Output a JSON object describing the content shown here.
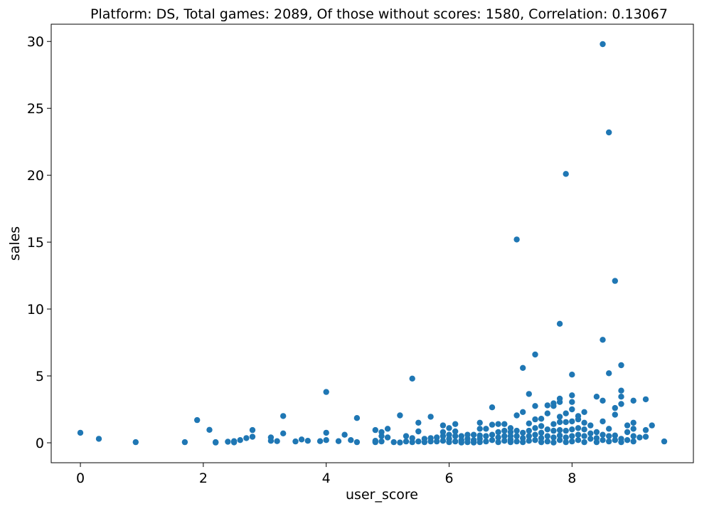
{
  "chart_data": {
    "type": "scatter",
    "title": "Platform: DS, Total games: 2089, Of those without scores: 1580, Correlation: 0.13067",
    "xlabel": "user_score",
    "ylabel": "sales",
    "xlim": [
      -0.475,
      9.975
    ],
    "ylim": [
      -1.49,
      31.29
    ],
    "xticks": [
      0,
      2,
      4,
      6,
      8
    ],
    "yticks": [
      0,
      5,
      10,
      15,
      20,
      25,
      30
    ],
    "grid": false,
    "marker_color": "#1f77b4",
    "points": [
      [
        0.0,
        0.75
      ],
      [
        0.3,
        0.3
      ],
      [
        0.9,
        0.05
      ],
      [
        1.7,
        0.05
      ],
      [
        1.9,
        1.7
      ],
      [
        2.1,
        0.97
      ],
      [
        2.2,
        0.05
      ],
      [
        2.2,
        0.02
      ],
      [
        2.4,
        0.08
      ],
      [
        2.5,
        0.12
      ],
      [
        2.5,
        0.03
      ],
      [
        2.6,
        0.2
      ],
      [
        2.7,
        0.35
      ],
      [
        2.8,
        0.45
      ],
      [
        2.8,
        0.95
      ],
      [
        3.1,
        0.4
      ],
      [
        3.1,
        0.15
      ],
      [
        3.2,
        0.12
      ],
      [
        3.3,
        0.7
      ],
      [
        3.3,
        2.0
      ],
      [
        3.5,
        0.1
      ],
      [
        3.6,
        0.25
      ],
      [
        3.7,
        0.15
      ],
      [
        3.9,
        0.12
      ],
      [
        4.0,
        0.2
      ],
      [
        4.0,
        0.75
      ],
      [
        4.0,
        3.8
      ],
      [
        4.2,
        0.12
      ],
      [
        4.3,
        0.6
      ],
      [
        4.4,
        0.2
      ],
      [
        4.5,
        0.05
      ],
      [
        4.5,
        1.85
      ],
      [
        4.8,
        0.95
      ],
      [
        4.8,
        0.15
      ],
      [
        4.8,
        0.05
      ],
      [
        4.9,
        0.8
      ],
      [
        4.9,
        0.5
      ],
      [
        4.9,
        0.1
      ],
      [
        5.0,
        1.05
      ],
      [
        5.0,
        0.4
      ],
      [
        5.1,
        0.05
      ],
      [
        5.2,
        2.05
      ],
      [
        5.2,
        0.02
      ],
      [
        5.3,
        0.5
      ],
      [
        5.3,
        0.1
      ],
      [
        5.4,
        4.8
      ],
      [
        5.4,
        0.35
      ],
      [
        5.4,
        0.05
      ],
      [
        5.5,
        1.5
      ],
      [
        5.5,
        0.85
      ],
      [
        5.5,
        0.1
      ],
      [
        5.6,
        0.3
      ],
      [
        5.6,
        0.05
      ],
      [
        5.7,
        1.95
      ],
      [
        5.7,
        0.35
      ],
      [
        5.7,
        0.1
      ],
      [
        5.8,
        0.4
      ],
      [
        5.8,
        0.1
      ],
      [
        5.9,
        1.3
      ],
      [
        5.9,
        0.8
      ],
      [
        5.9,
        0.5
      ],
      [
        5.9,
        0.15
      ],
      [
        6.0,
        1.1
      ],
      [
        6.0,
        0.6
      ],
      [
        6.0,
        0.3
      ],
      [
        6.0,
        0.05
      ],
      [
        6.1,
        1.4
      ],
      [
        6.1,
        0.85
      ],
      [
        6.1,
        0.5
      ],
      [
        6.1,
        0.1
      ],
      [
        6.2,
        0.5
      ],
      [
        6.2,
        0.2
      ],
      [
        6.2,
        0.02
      ],
      [
        6.3,
        0.6
      ],
      [
        6.3,
        0.3
      ],
      [
        6.3,
        0.05
      ],
      [
        6.4,
        0.6
      ],
      [
        6.4,
        0.2
      ],
      [
        6.4,
        0.02
      ],
      [
        6.5,
        1.5
      ],
      [
        6.5,
        1.05
      ],
      [
        6.5,
        0.55
      ],
      [
        6.5,
        0.3
      ],
      [
        6.5,
        0.05
      ],
      [
        6.6,
        1.05
      ],
      [
        6.6,
        0.5
      ],
      [
        6.6,
        0.1
      ],
      [
        6.7,
        2.65
      ],
      [
        6.7,
        1.35
      ],
      [
        6.7,
        0.6
      ],
      [
        6.7,
        0.2
      ],
      [
        6.8,
        1.4
      ],
      [
        6.8,
        0.8
      ],
      [
        6.8,
        0.4
      ],
      [
        6.8,
        0.05
      ],
      [
        6.9,
        1.4
      ],
      [
        6.9,
        0.9
      ],
      [
        6.9,
        0.5
      ],
      [
        6.9,
        0.15
      ],
      [
        7.0,
        1.1
      ],
      [
        7.0,
        0.8
      ],
      [
        7.0,
        0.5
      ],
      [
        7.0,
        0.25
      ],
      [
        7.0,
        0.05
      ],
      [
        7.1,
        15.2
      ],
      [
        7.1,
        2.05
      ],
      [
        7.1,
        0.9
      ],
      [
        7.1,
        0.5
      ],
      [
        7.1,
        0.1
      ],
      [
        7.2,
        5.6
      ],
      [
        7.2,
        2.3
      ],
      [
        7.2,
        0.75
      ],
      [
        7.2,
        0.35
      ],
      [
        7.2,
        0.05
      ],
      [
        7.3,
        3.65
      ],
      [
        7.3,
        1.45
      ],
      [
        7.3,
        0.9
      ],
      [
        7.3,
        0.5
      ],
      [
        7.3,
        0.15
      ],
      [
        7.4,
        6.6
      ],
      [
        7.4,
        2.75
      ],
      [
        7.4,
        1.75
      ],
      [
        7.4,
        1.1
      ],
      [
        7.4,
        0.6
      ],
      [
        7.4,
        0.2
      ],
      [
        7.5,
        1.8
      ],
      [
        7.5,
        1.25
      ],
      [
        7.5,
        0.75
      ],
      [
        7.5,
        0.35
      ],
      [
        7.5,
        0.05
      ],
      [
        7.6,
        2.8
      ],
      [
        7.6,
        2.2
      ],
      [
        7.6,
        1.0
      ],
      [
        7.6,
        0.5
      ],
      [
        7.6,
        0.1
      ],
      [
        7.7,
        2.95
      ],
      [
        7.7,
        2.75
      ],
      [
        7.7,
        1.4
      ],
      [
        7.7,
        0.9
      ],
      [
        7.7,
        0.4
      ],
      [
        7.7,
        0.02
      ],
      [
        7.8,
        8.9
      ],
      [
        7.8,
        3.3
      ],
      [
        7.8,
        3.05
      ],
      [
        7.8,
        1.95
      ],
      [
        7.8,
        1.55
      ],
      [
        7.8,
        0.95
      ],
      [
        7.8,
        0.55
      ],
      [
        7.8,
        0.2
      ],
      [
        7.9,
        20.1
      ],
      [
        7.9,
        2.2
      ],
      [
        7.9,
        1.55
      ],
      [
        7.9,
        0.9
      ],
      [
        7.9,
        0.4
      ],
      [
        7.9,
        0.05
      ],
      [
        8.0,
        5.1
      ],
      [
        8.0,
        3.55
      ],
      [
        8.0,
        3.05
      ],
      [
        8.0,
        2.5
      ],
      [
        8.0,
        1.6
      ],
      [
        8.0,
        1.0
      ],
      [
        8.0,
        0.5
      ],
      [
        8.0,
        0.1
      ],
      [
        8.1,
        2.0
      ],
      [
        8.1,
        1.75
      ],
      [
        8.1,
        1.1
      ],
      [
        8.1,
        0.6
      ],
      [
        8.1,
        0.2
      ],
      [
        8.2,
        2.3
      ],
      [
        8.2,
        1.5
      ],
      [
        8.2,
        1.0
      ],
      [
        8.2,
        0.5
      ],
      [
        8.2,
        0.05
      ],
      [
        8.3,
        1.3
      ],
      [
        8.3,
        0.7
      ],
      [
        8.3,
        0.3
      ],
      [
        8.4,
        3.45
      ],
      [
        8.4,
        0.8
      ],
      [
        8.4,
        0.35
      ],
      [
        8.4,
        0.05
      ],
      [
        8.5,
        29.8
      ],
      [
        8.5,
        7.7
      ],
      [
        8.5,
        3.15
      ],
      [
        8.5,
        1.6
      ],
      [
        8.5,
        0.6
      ],
      [
        8.5,
        0.2
      ],
      [
        8.6,
        23.2
      ],
      [
        8.6,
        5.2
      ],
      [
        8.6,
        1.05
      ],
      [
        8.6,
        0.5
      ],
      [
        8.6,
        0.1
      ],
      [
        8.7,
        12.1
      ],
      [
        8.7,
        2.6
      ],
      [
        8.7,
        2.1
      ],
      [
        8.7,
        0.55
      ],
      [
        8.7,
        0.2
      ],
      [
        8.8,
        5.8
      ],
      [
        8.8,
        3.9
      ],
      [
        8.8,
        3.45
      ],
      [
        8.8,
        2.9
      ],
      [
        8.8,
        0.3
      ],
      [
        8.8,
        0.05
      ],
      [
        8.9,
        1.3
      ],
      [
        8.9,
        0.8
      ],
      [
        8.9,
        0.2
      ],
      [
        9.0,
        3.15
      ],
      [
        9.0,
        1.5
      ],
      [
        9.0,
        1.05
      ],
      [
        9.0,
        0.5
      ],
      [
        9.0,
        0.1
      ],
      [
        9.1,
        0.4
      ],
      [
        9.2,
        3.25
      ],
      [
        9.2,
        0.95
      ],
      [
        9.2,
        0.45
      ],
      [
        9.3,
        1.3
      ],
      [
        9.5,
        0.1
      ]
    ]
  }
}
